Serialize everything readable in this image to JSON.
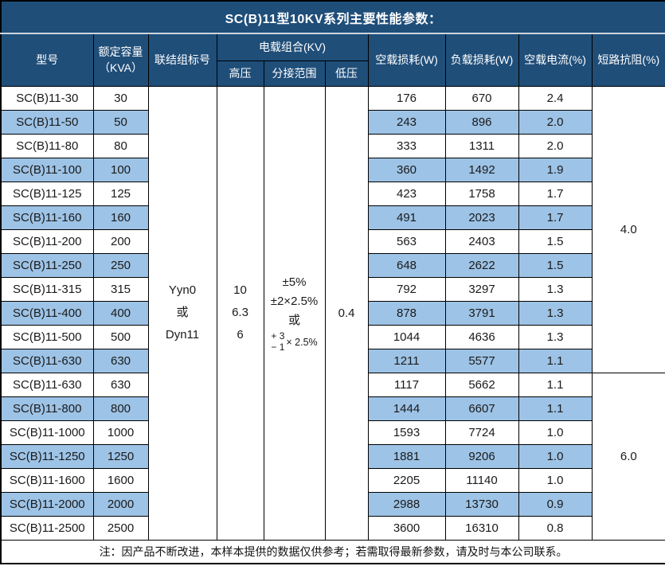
{
  "title": "SC(B)11型10KV系列主要性能参数：",
  "headers": {
    "model": "型号",
    "capacity_line1": "额定容量",
    "capacity_line2": "（KVA）",
    "connection": "联结组标号",
    "load_combo": "电载组合(KV)",
    "hv": "高压",
    "tap_range": "分接范围",
    "lv": "低压",
    "no_load_loss": "空载损耗(W)",
    "load_loss": "负载损耗(W)",
    "no_load_current": "空载电流(%)",
    "impedance": "短路抗阻(%)"
  },
  "merged": {
    "connection_lines": [
      "Yyn0",
      "或",
      "Dyn11"
    ],
    "hv_lines": [
      "10",
      "6.3",
      "6"
    ],
    "tap_lines": [
      "±5%",
      "±2×2.5%",
      "或"
    ],
    "tap_stack": {
      "top": "+ 3",
      "bottom": "− 1",
      "rest": "× 2.5%"
    },
    "lv": "0.4"
  },
  "impedance_groups": [
    {
      "value": "4.0",
      "row_span": 12
    },
    {
      "value": "6.0",
      "row_span": 7
    }
  ],
  "rows": [
    {
      "model": "SC(B)11-30",
      "capacity": "30",
      "no_load_loss": "176",
      "load_loss": "670",
      "no_load_current": "2.4",
      "highlighted": false
    },
    {
      "model": "SC(B)11-50",
      "capacity": "50",
      "no_load_loss": "243",
      "load_loss": "896",
      "no_load_current": "2.0",
      "highlighted": true
    },
    {
      "model": "SC(B)11-80",
      "capacity": "80",
      "no_load_loss": "333",
      "load_loss": "1311",
      "no_load_current": "2.0",
      "highlighted": false
    },
    {
      "model": "SC(B)11-100",
      "capacity": "100",
      "no_load_loss": "360",
      "load_loss": "1492",
      "no_load_current": "1.9",
      "highlighted": true
    },
    {
      "model": "SC(B)11-125",
      "capacity": "125",
      "no_load_loss": "423",
      "load_loss": "1758",
      "no_load_current": "1.7",
      "highlighted": false
    },
    {
      "model": "SC(B)11-160",
      "capacity": "160",
      "no_load_loss": "491",
      "load_loss": "2023",
      "no_load_current": "1.7",
      "highlighted": true
    },
    {
      "model": "SC(B)11-200",
      "capacity": "200",
      "no_load_loss": "563",
      "load_loss": "2403",
      "no_load_current": "1.5",
      "highlighted": false
    },
    {
      "model": "SC(B)11-250",
      "capacity": "250",
      "no_load_loss": "648",
      "load_loss": "2622",
      "no_load_current": "1.5",
      "highlighted": true
    },
    {
      "model": "SC(B)11-315",
      "capacity": "315",
      "no_load_loss": "792",
      "load_loss": "3297",
      "no_load_current": "1.3",
      "highlighted": false
    },
    {
      "model": "SC(B)11-400",
      "capacity": "400",
      "no_load_loss": "878",
      "load_loss": "3791",
      "no_load_current": "1.3",
      "highlighted": true
    },
    {
      "model": "SC(B)11-500",
      "capacity": "500",
      "no_load_loss": "1044",
      "load_loss": "4636",
      "no_load_current": "1.3",
      "highlighted": false
    },
    {
      "model": "SC(B)11-630",
      "capacity": "630",
      "no_load_loss": "1211",
      "load_loss": "5577",
      "no_load_current": "1.1",
      "highlighted": true
    },
    {
      "model": "SC(B)11-630",
      "capacity": "630",
      "no_load_loss": "1117",
      "load_loss": "5662",
      "no_load_current": "1.1",
      "highlighted": false
    },
    {
      "model": "SC(B)11-800",
      "capacity": "800",
      "no_load_loss": "1444",
      "load_loss": "6607",
      "no_load_current": "1.1",
      "highlighted": true
    },
    {
      "model": "SC(B)11-1000",
      "capacity": "1000",
      "no_load_loss": "1593",
      "load_loss": "7724",
      "no_load_current": "1.0",
      "highlighted": false
    },
    {
      "model": "SC(B)11-1250",
      "capacity": "1250",
      "no_load_loss": "1881",
      "load_loss": "9206",
      "no_load_current": "1.0",
      "highlighted": true
    },
    {
      "model": "SC(B)11-1600",
      "capacity": "1600",
      "no_load_loss": "2205",
      "load_loss": "11140",
      "no_load_current": "1.0",
      "highlighted": false
    },
    {
      "model": "SC(B)11-2000",
      "capacity": "2000",
      "no_load_loss": "2988",
      "load_loss": "13730",
      "no_load_current": "0.9",
      "highlighted": true
    },
    {
      "model": "SC(B)11-2500",
      "capacity": "2500",
      "no_load_loss": "3600",
      "load_loss": "16310",
      "no_load_current": "0.8",
      "highlighted": false
    }
  ],
  "note": "注：因产品不断改进，本样本提供的数据仅供参考；若需取得最新参数，请及时与本公司联系。",
  "colors": {
    "header_bg": "#1F4E79",
    "row_highlight": "#9DC3E6",
    "border": "#000000",
    "header_text": "#FFFFFF"
  }
}
